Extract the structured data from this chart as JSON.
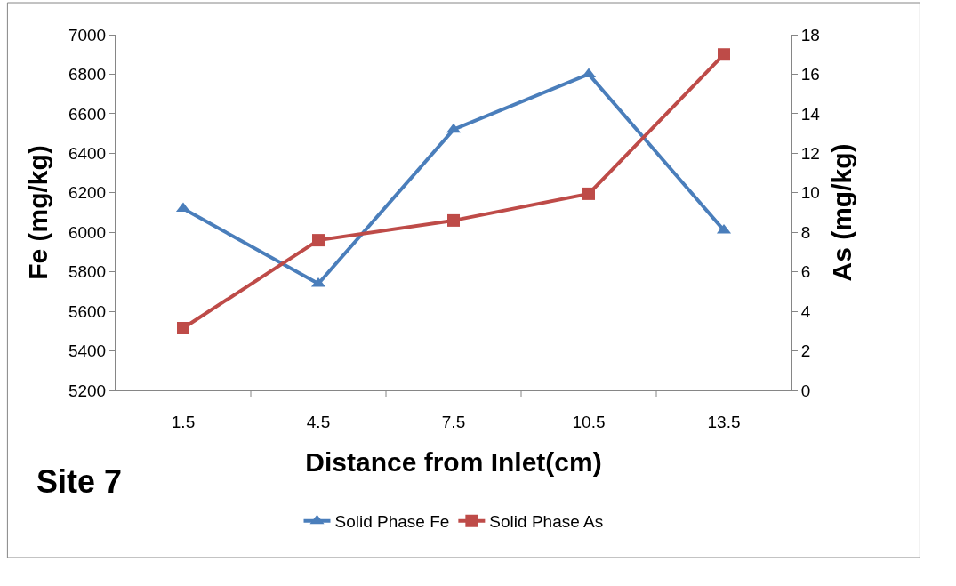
{
  "chart_data": {
    "type": "line",
    "xlabel": "Distance from Inlet(cm)",
    "ylabel": "Fe (mg/kg)",
    "y2label": "As (mg/kg)",
    "categories": [
      "1.5",
      "4.5",
      "7.5",
      "10.5",
      "13.5"
    ],
    "series": [
      {
        "name": "Solid Phase Fe",
        "color": "#4a7ebb",
        "values": [
          6120,
          5740,
          6520,
          6800,
          6010
        ],
        "marker": "triangle"
      },
      {
        "name": "Solid Phase As",
        "color": "#be4b48",
        "values": [
          3.15,
          7.6,
          8.6,
          9.95,
          17.0
        ],
        "marker": "square",
        "axis": "y2"
      }
    ],
    "ylim": [
      5200,
      7000
    ],
    "yticks": [
      5200,
      5400,
      5600,
      5800,
      6000,
      6200,
      6400,
      6600,
      6800,
      7000
    ],
    "y2lim": [
      0,
      18
    ],
    "y2ticks": [
      0,
      2,
      4,
      6,
      8,
      10,
      12,
      14,
      16,
      18
    ],
    "annotations": [
      "Site 7"
    ],
    "legend": "bottom",
    "line_style": "solid"
  }
}
